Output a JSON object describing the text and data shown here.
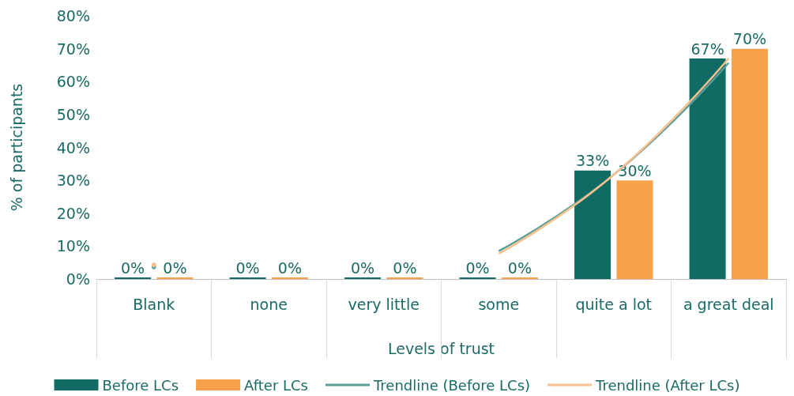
{
  "chart_data": {
    "type": "bar",
    "xlabel": "Levels of trust",
    "ylabel": "% of participants",
    "categories": [
      "Blank",
      "none",
      "very little",
      "some",
      "quite a lot",
      "a great deal"
    ],
    "ylim": [
      0,
      80
    ],
    "yticks": [
      {
        "value": 0,
        "label": "0%"
      },
      {
        "value": 10,
        "label": "10%"
      },
      {
        "value": 20,
        "label": "20%"
      },
      {
        "value": 30,
        "label": "30%"
      },
      {
        "value": 40,
        "label": "40%"
      },
      {
        "value": 50,
        "label": "50%"
      },
      {
        "value": 60,
        "label": "60%"
      },
      {
        "value": 70,
        "label": "70%"
      },
      {
        "value": 80,
        "label": "80%"
      }
    ],
    "grid": false,
    "legend": "bottom",
    "series": [
      {
        "name": "Before LCs",
        "color": "#0f6b63",
        "values": [
          0,
          0,
          0,
          0,
          33,
          67
        ],
        "value_labels": [
          "0%",
          "0%",
          "0%",
          "0%",
          "33%",
          "67%"
        ]
      },
      {
        "name": "After LCs",
        "color": "#f7a24a",
        "values": [
          0,
          0,
          0,
          0,
          30,
          70
        ],
        "value_labels": [
          "0%",
          "0%",
          "0%",
          "0%",
          "30%",
          "70%"
        ]
      },
      {
        "name": "Trendline (Before LCs)",
        "type": "line",
        "color": "#5a9e98",
        "x": [
          "Blank",
          "none",
          "very little",
          "some",
          "quite a lot",
          "a great deal"
        ],
        "values": [
          3.7,
          null,
          null,
          8.5,
          31.7,
          65.7
        ]
      },
      {
        "name": "Trendline (After LCs)",
        "type": "line",
        "color": "#f6c08f",
        "x": [
          "Blank",
          "none",
          "very little",
          "some",
          "quite a lot",
          "a great deal"
        ],
        "values": [
          4.3,
          null,
          null,
          7.7,
          31.7,
          67.1
        ]
      }
    ]
  }
}
